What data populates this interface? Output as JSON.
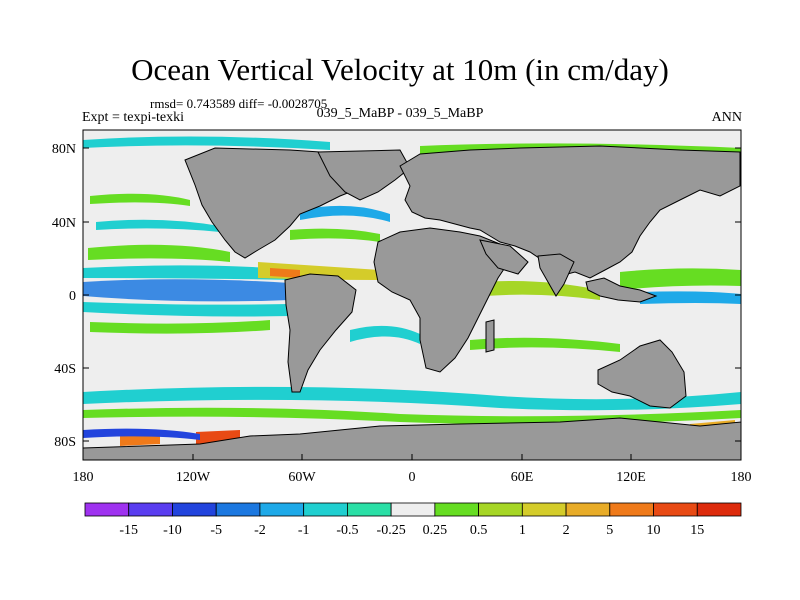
{
  "map": {
    "title": "Ocean Vertical Velocity at 10m (in cm/day)",
    "stats": "rmsd= 0.743589 diff= -0.0028705",
    "left_label": "Expt = texpi-texki",
    "center_label": "039_5_MaBP - 039_5_MaBP",
    "right_label": "ANN",
    "x_ticks": [
      "180",
      "120W",
      "60W",
      "0",
      "60E",
      "120E",
      "180"
    ],
    "y_ticks": [
      "80N",
      "40N",
      "0",
      "40S",
      "80S"
    ],
    "colors": {
      "land": "#999999",
      "neutral": "#eeeeee"
    }
  },
  "colorbar": {
    "labels": [
      "-15",
      "-10",
      "-5",
      "-2",
      "-1",
      "-0.5",
      "-0.25",
      "0.25",
      "0.5",
      "1",
      "2",
      "5",
      "10",
      "15"
    ],
    "colors": [
      "#9f32f0",
      "#5a3df0",
      "#2244dd",
      "#1c78e0",
      "#1ea9e8",
      "#20cfd0",
      "#2adfa6",
      "#eeeeee",
      "#66dd22",
      "#a6d626",
      "#d4cc2a",
      "#e8ac28",
      "#ef7a1a",
      "#e84a14",
      "#dd2b0c"
    ]
  }
}
